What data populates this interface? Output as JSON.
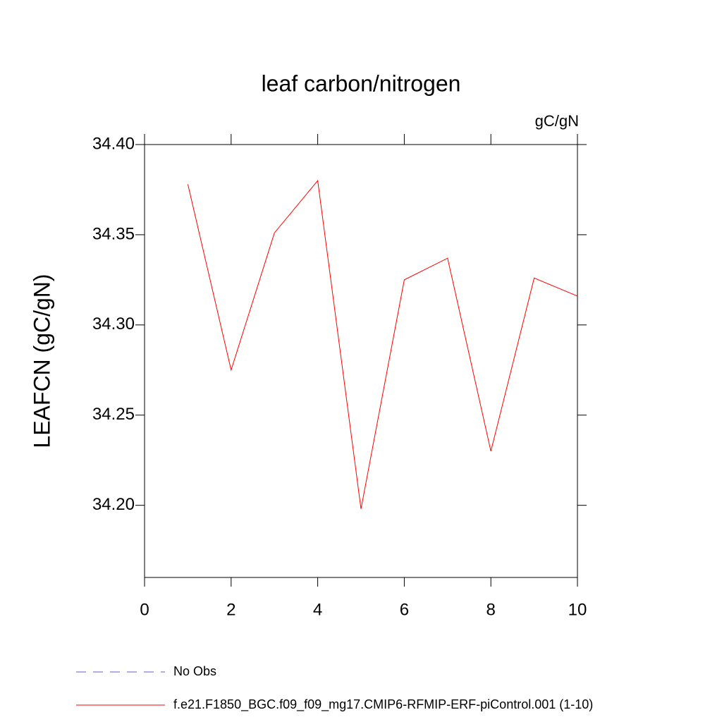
{
  "chart_data": {
    "type": "line",
    "title": "leaf carbon/nitrogen",
    "units": "gC/gN",
    "ylabel": "LEAFCN  (gC/gN)",
    "x": [
      1,
      2,
      3,
      4,
      5,
      6,
      7,
      8,
      9,
      10
    ],
    "series": [
      {
        "name": "No Obs",
        "color": "#6a5acd",
        "dashed": true,
        "values": [
          null,
          null,
          null,
          null,
          null,
          null,
          null,
          null,
          null,
          null
        ]
      },
      {
        "name": "f.e21.F1850_BGC.f09_f09_mg17.CMIP6-RFMIP-ERF-piControl.001 (1-10)",
        "color": "#ff0000",
        "dashed": false,
        "values": [
          34.378,
          34.275,
          34.351,
          34.38,
          34.198,
          34.325,
          34.337,
          34.23,
          34.326,
          34.316
        ]
      }
    ],
    "xlim": [
      0,
      10
    ],
    "xticks": [
      0,
      2,
      4,
      6,
      8,
      10
    ],
    "ylim": [
      34.16,
      34.4
    ],
    "yticks": [
      {
        "value": 34.2,
        "label": "34.20"
      },
      {
        "value": 34.25,
        "label": "34.25"
      },
      {
        "value": 34.3,
        "label": "34.30"
      },
      {
        "value": 34.35,
        "label": "34.35"
      },
      {
        "value": 34.4,
        "label": "34.40"
      }
    ],
    "grid": false
  }
}
